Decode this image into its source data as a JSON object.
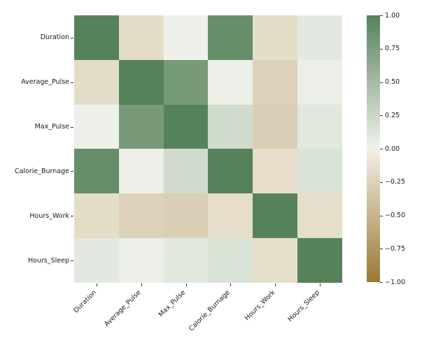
{
  "chart_data": {
    "type": "heatmap",
    "title": "",
    "xlabel": "",
    "ylabel": "",
    "categories": [
      "Duration",
      "Average_Pulse",
      "Max_Pulse",
      "Calorie_Burnage",
      "Hours_Work",
      "Hours_Sleep"
    ],
    "matrix": [
      [
        1.0,
        -0.155,
        0.009,
        0.89,
        -0.156,
        0.076
      ],
      [
        -0.155,
        1.0,
        0.787,
        0.025,
        -0.244,
        0.026
      ],
      [
        0.009,
        0.787,
        1.0,
        0.204,
        -0.271,
        0.093
      ],
      [
        0.89,
        0.025,
        0.204,
        1.0,
        -0.14,
        0.143
      ],
      [
        -0.156,
        -0.244,
        -0.271,
        -0.14,
        1.0,
        -0.143
      ],
      [
        0.076,
        0.026,
        0.093,
        0.143,
        -0.143,
        1.0
      ]
    ],
    "vmin": -1,
    "vmax": 1,
    "x_tick_rotation_deg": 45,
    "grid": false,
    "legend_position": "right-colorbar",
    "colorbar_ticks": [
      {
        "label": "1.00",
        "value": 1.0
      },
      {
        "label": "0.75",
        "value": 0.75
      },
      {
        "label": "0.50",
        "value": 0.5
      },
      {
        "label": "0.25",
        "value": 0.25
      },
      {
        "label": "0.00",
        "value": 0.0
      },
      {
        "label": "−0.25",
        "value": -0.25
      },
      {
        "label": "−0.50",
        "value": -0.5
      },
      {
        "label": "−0.75",
        "value": -0.75
      },
      {
        "label": "−1.00",
        "value": -1.0
      }
    ],
    "colors": {
      "positive_end": "#56825A",
      "negative_end": "#9A7933",
      "center_positive": "#EFF2EB",
      "center_negative": "#F2EFE4",
      "tick": "#333333",
      "text": "#1a1a1a",
      "background": "#FFFFFF"
    }
  }
}
